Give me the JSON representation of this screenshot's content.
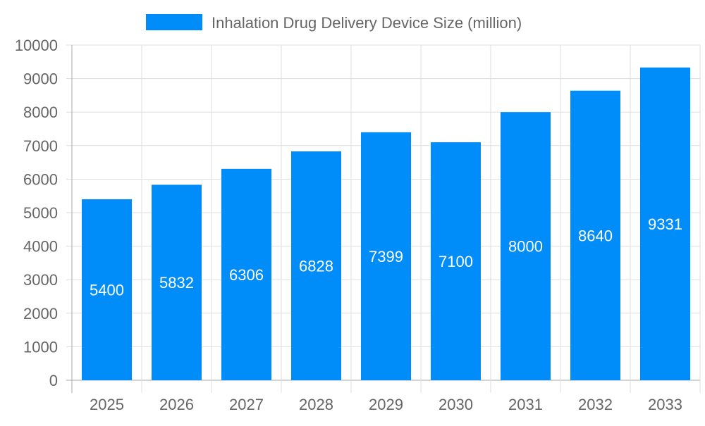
{
  "chart_data": {
    "type": "bar",
    "title": "",
    "xlabel": "",
    "ylabel": "",
    "categories": [
      "2025",
      "2026",
      "2027",
      "2028",
      "2029",
      "2030",
      "2031",
      "2032",
      "2033"
    ],
    "series": [
      {
        "name": "Inhalation Drug Delivery Device Size (million)",
        "values": [
          5400,
          5832,
          6306,
          6828,
          7399,
          7100,
          8000,
          8640,
          9331
        ]
      }
    ],
    "ylim": [
      0,
      10000
    ],
    "yticks": [
      0,
      1000,
      2000,
      3000,
      4000,
      5000,
      6000,
      7000,
      8000,
      9000,
      10000
    ],
    "grid": true,
    "legend": "top-center",
    "data_labels": true,
    "colors": {
      "bar": "#008cf9",
      "label": "#ffffff",
      "tick_text": "#666666",
      "grid": "#dddddd",
      "axis": "#aaaaaa"
    }
  }
}
